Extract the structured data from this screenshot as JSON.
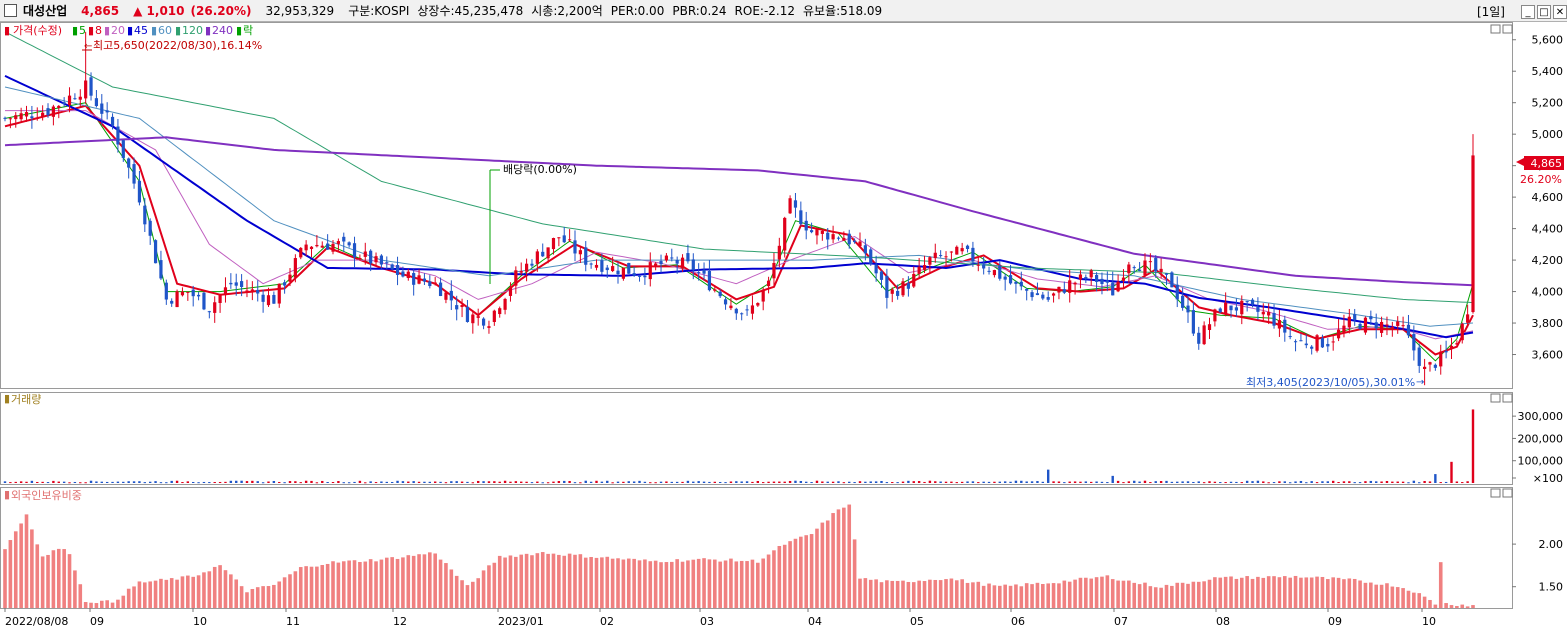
{
  "header": {
    "name": "대성산업",
    "price": "4,865",
    "change": "▲ 1,010",
    "change_pct": "(26.20%)",
    "volume": "32,953,329",
    "market": "구분:KOSPI",
    "shares": "상장수:45,235,478",
    "mcap": "시총:2,200억",
    "per": "PER:0.00",
    "pbr": "PBR:0.24",
    "roe": "ROE:-2.12",
    "reserve": "유보율:518.09",
    "timeframe": "[1일]"
  },
  "window_buttons": [
    "_",
    "□",
    "✕"
  ],
  "colors": {
    "up": "#e0001b",
    "down": "#1f55c8",
    "ma5": "#00a000",
    "ma8": "#e0001b",
    "ma20": "#c060c0",
    "ma45": "#0000d0",
    "ma60": "#5090c0",
    "ma120": "#30a070",
    "ma240": "#8030c0"
  },
  "legend": [
    {
      "label": "가격(수정)",
      "color": "#e0001b"
    },
    {
      "label": "5",
      "color": "#00a000"
    },
    {
      "label": "8",
      "color": "#e0001b"
    },
    {
      "label": "20",
      "color": "#c060c0"
    },
    {
      "label": "45",
      "color": "#0000d0"
    },
    {
      "label": "60",
      "color": "#5090c0"
    },
    {
      "label": "120",
      "color": "#30a070"
    },
    {
      "label": "240",
      "color": "#8030c0"
    },
    {
      "label": "락",
      "color": "#00a000"
    }
  ],
  "annotations": {
    "high": "최고5,650(2022/08/30),16.14%",
    "low": "최저3,405(2023/10/05),30.01%",
    "dividend": "배당락(0.00%)",
    "price_tag": "4,865",
    "price_tag_pct": "26.20%"
  },
  "panels": {
    "volume_title": "거래량",
    "foreign_title": "외국인보유비중"
  },
  "chart_data": [
    {
      "type": "candlestick",
      "title": "가격(수정)",
      "ylim": [
        3400,
        5700
      ],
      "yticks": [
        "5,600",
        "5,400",
        "5,200",
        "5,000",
        "4,800",
        "4,600",
        "4,400",
        "4,200",
        "4,000",
        "3,800",
        "3,600"
      ],
      "ytick_values": [
        5600,
        5400,
        5200,
        5000,
        4800,
        4600,
        4400,
        4200,
        4000,
        3800,
        3600
      ],
      "x_labels": [
        "2022/08/08",
        "09",
        "10",
        "11",
        "12",
        "2023/01",
        "02",
        "03",
        "04",
        "05",
        "06",
        "07",
        "08",
        "09",
        "10"
      ],
      "close_anchors": [
        [
          0,
          5100
        ],
        [
          8,
          5150
        ],
        [
          15,
          5300
        ],
        [
          20,
          5050
        ],
        [
          25,
          4600
        ],
        [
          30,
          3950
        ],
        [
          34,
          4000
        ],
        [
          38,
          3900
        ],
        [
          42,
          4050
        ],
        [
          46,
          4000
        ],
        [
          50,
          3950
        ],
        [
          56,
          4300
        ],
        [
          62,
          4300
        ],
        [
          68,
          4200
        ],
        [
          74,
          4100
        ],
        [
          80,
          4050
        ],
        [
          86,
          3850
        ],
        [
          90,
          3820
        ],
        [
          95,
          4100
        ],
        [
          98,
          4200
        ],
        [
          103,
          4350
        ],
        [
          108,
          4200
        ],
        [
          113,
          4150
        ],
        [
          118,
          4120
        ],
        [
          124,
          4200
        ],
        [
          128,
          4150
        ],
        [
          134,
          3950
        ],
        [
          138,
          3850
        ],
        [
          142,
          4050
        ],
        [
          146,
          4550
        ],
        [
          150,
          4380
        ],
        [
          156,
          4350
        ],
        [
          160,
          4250
        ],
        [
          164,
          3980
        ],
        [
          168,
          4050
        ],
        [
          172,
          4200
        ],
        [
          178,
          4250
        ],
        [
          183,
          4150
        ],
        [
          188,
          4030
        ],
        [
          194,
          3950
        ],
        [
          198,
          4050
        ],
        [
          202,
          4100
        ],
        [
          206,
          4000
        ],
        [
          209,
          4200
        ],
        [
          213,
          4150
        ],
        [
          217,
          4050
        ],
        [
          222,
          3700
        ],
        [
          226,
          3900
        ],
        [
          230,
          3900
        ],
        [
          235,
          3850
        ],
        [
          240,
          3680
        ],
        [
          246,
          3680
        ],
        [
          250,
          3800
        ],
        [
          255,
          3800
        ],
        [
          260,
          3760
        ],
        [
          264,
          3500
        ],
        [
          268,
          3600
        ],
        [
          270,
          3700
        ],
        [
          272,
          3855
        ],
        [
          273,
          4865
        ]
      ],
      "series": [
        {
          "name": "5",
          "anchors": [
            [
              0,
              5100
            ],
            [
              15,
              5200
            ],
            [
              25,
              4700
            ],
            [
              30,
              4000
            ],
            [
              40,
              4000
            ],
            [
              52,
              4050
            ],
            [
              60,
              4300
            ],
            [
              70,
              4150
            ],
            [
              80,
              4050
            ],
            [
              88,
              3850
            ],
            [
              96,
              4100
            ],
            [
              105,
              4320
            ],
            [
              115,
              4150
            ],
            [
              125,
              4170
            ],
            [
              136,
              3920
            ],
            [
              142,
              4050
            ],
            [
              147,
              4450
            ],
            [
              155,
              4370
            ],
            [
              164,
              4000
            ],
            [
              172,
              4150
            ],
            [
              180,
              4250
            ],
            [
              190,
              4020
            ],
            [
              198,
              4000
            ],
            [
              206,
              4030
            ],
            [
              212,
              4170
            ],
            [
              220,
              3880
            ],
            [
              226,
              3850
            ],
            [
              236,
              3830
            ],
            [
              244,
              3700
            ],
            [
              252,
              3780
            ],
            [
              260,
              3760
            ],
            [
              266,
              3560
            ],
            [
              270,
              3700
            ],
            [
              273,
              4050
            ]
          ]
        },
        {
          "name": "8",
          "anchors": [
            [
              0,
              5050
            ],
            [
              15,
              5180
            ],
            [
              25,
              4800
            ],
            [
              32,
              4050
            ],
            [
              40,
              3980
            ],
            [
              52,
              4020
            ],
            [
              60,
              4280
            ],
            [
              70,
              4150
            ],
            [
              80,
              4050
            ],
            [
              88,
              3850
            ],
            [
              96,
              4080
            ],
            [
              106,
              4300
            ],
            [
              116,
              4160
            ],
            [
              126,
              4160
            ],
            [
              136,
              3950
            ],
            [
              143,
              4030
            ],
            [
              148,
              4420
            ],
            [
              157,
              4360
            ],
            [
              166,
              4020
            ],
            [
              174,
              4150
            ],
            [
              182,
              4230
            ],
            [
              192,
              4020
            ],
            [
              200,
              4000
            ],
            [
              208,
              4020
            ],
            [
              214,
              4140
            ],
            [
              222,
              3900
            ],
            [
              228,
              3850
            ],
            [
              236,
              3800
            ],
            [
              244,
              3700
            ],
            [
              252,
              3760
            ],
            [
              260,
              3760
            ],
            [
              266,
              3600
            ],
            [
              270,
              3650
            ],
            [
              273,
              3850
            ]
          ]
        },
        {
          "name": "20",
          "anchors": [
            [
              0,
              5150
            ],
            [
              15,
              5150
            ],
            [
              28,
              4900
            ],
            [
              38,
              4300
            ],
            [
              48,
              4050
            ],
            [
              58,
              4200
            ],
            [
              68,
              4200
            ],
            [
              80,
              4100
            ],
            [
              88,
              3950
            ],
            [
              98,
              4050
            ],
            [
              110,
              4250
            ],
            [
              122,
              4180
            ],
            [
              136,
              4050
            ],
            [
              146,
              4200
            ],
            [
              158,
              4350
            ],
            [
              168,
              4120
            ],
            [
              180,
              4200
            ],
            [
              192,
              4080
            ],
            [
              204,
              4030
            ],
            [
              214,
              4100
            ],
            [
              224,
              3950
            ],
            [
              234,
              3880
            ],
            [
              246,
              3760
            ],
            [
              258,
              3780
            ],
            [
              266,
              3700
            ],
            [
              273,
              3750
            ]
          ]
        },
        {
          "name": "45",
          "anchors": [
            [
              0,
              5370
            ],
            [
              20,
              5050
            ],
            [
              45,
              4450
            ],
            [
              60,
              4150
            ],
            [
              80,
              4140
            ],
            [
              95,
              4110
            ],
            [
              115,
              4100
            ],
            [
              130,
              4140
            ],
            [
              150,
              4150
            ],
            [
              160,
              4180
            ],
            [
              175,
              4150
            ],
            [
              185,
              4200
            ],
            [
              200,
              4080
            ],
            [
              212,
              4050
            ],
            [
              222,
              3960
            ],
            [
              235,
              3900
            ],
            [
              252,
              3810
            ],
            [
              262,
              3750
            ],
            [
              268,
              3710
            ],
            [
              273,
              3740
            ]
          ]
        },
        {
          "name": "60",
          "anchors": [
            [
              0,
              5300
            ],
            [
              25,
              5100
            ],
            [
              50,
              4450
            ],
            [
              70,
              4200
            ],
            [
              90,
              4100
            ],
            [
              110,
              4200
            ],
            [
              130,
              4200
            ],
            [
              150,
              4200
            ],
            [
              170,
              4230
            ],
            [
              190,
              4140
            ],
            [
              210,
              4100
            ],
            [
              230,
              3950
            ],
            [
              250,
              3860
            ],
            [
              265,
              3780
            ],
            [
              273,
              3800
            ]
          ]
        },
        {
          "name": "120",
          "anchors": [
            [
              0,
              5650
            ],
            [
              20,
              5300
            ],
            [
              50,
              5100
            ],
            [
              70,
              4700
            ],
            [
              100,
              4430
            ],
            [
              130,
              4270
            ],
            [
              160,
              4220
            ],
            [
              190,
              4150
            ],
            [
              215,
              4120
            ],
            [
              240,
              4020
            ],
            [
              260,
              3950
            ],
            [
              273,
              3930
            ]
          ]
        },
        {
          "name": "240",
          "anchors": [
            [
              0,
              4930
            ],
            [
              30,
              4980
            ],
            [
              50,
              4900
            ],
            [
              80,
              4850
            ],
            [
              110,
              4800
            ],
            [
              140,
              4770
            ],
            [
              160,
              4700
            ],
            [
              180,
              4510
            ],
            [
              210,
              4240
            ],
            [
              240,
              4100
            ],
            [
              260,
              4060
            ],
            [
              273,
              4040
            ]
          ]
        }
      ]
    },
    {
      "type": "bar",
      "title": "거래량",
      "yticks": [
        "300,000",
        "200,000",
        "100,000",
        "×100"
      ],
      "ytick_values": [
        300000,
        200000,
        100000,
        0
      ],
      "ylim": [
        0,
        350000
      ],
      "spikes": [
        [
          194,
          60000
        ],
        [
          206,
          32000
        ],
        [
          266,
          40000
        ],
        [
          269,
          95000
        ],
        [
          273,
          330000
        ]
      ],
      "baseline": 8000
    },
    {
      "type": "bar",
      "title": "외국인보유비중",
      "yticks": [
        "2.00",
        "1.50"
      ],
      "ytick_values": [
        2.0,
        1.5
      ],
      "ylim": [
        1.25,
        2.6
      ],
      "anchors": [
        [
          0,
          1.95
        ],
        [
          4,
          2.35
        ],
        [
          7,
          1.85
        ],
        [
          10,
          1.95
        ],
        [
          12,
          1.9
        ],
        [
          15,
          1.33
        ],
        [
          20,
          1.32
        ],
        [
          25,
          1.55
        ],
        [
          30,
          1.58
        ],
        [
          35,
          1.62
        ],
        [
          40,
          1.75
        ],
        [
          45,
          1.45
        ],
        [
          50,
          1.52
        ],
        [
          55,
          1.72
        ],
        [
          60,
          1.78
        ],
        [
          70,
          1.82
        ],
        [
          80,
          1.9
        ],
        [
          86,
          1.5
        ],
        [
          92,
          1.85
        ],
        [
          100,
          1.9
        ],
        [
          110,
          1.85
        ],
        [
          120,
          1.8
        ],
        [
          130,
          1.82
        ],
        [
          140,
          1.8
        ],
        [
          145,
          2.0
        ],
        [
          150,
          2.12
        ],
        [
          154,
          2.35
        ],
        [
          157,
          2.48
        ],
        [
          159,
          1.6
        ],
        [
          165,
          1.55
        ],
        [
          175,
          1.6
        ],
        [
          185,
          1.5
        ],
        [
          195,
          1.55
        ],
        [
          205,
          1.62
        ],
        [
          210,
          1.55
        ],
        [
          215,
          1.5
        ],
        [
          225,
          1.6
        ],
        [
          240,
          1.62
        ],
        [
          250,
          1.58
        ],
        [
          258,
          1.52
        ],
        [
          262,
          1.45
        ],
        [
          266,
          1.3
        ],
        [
          267,
          1.8
        ],
        [
          268,
          1.3
        ],
        [
          273,
          1.28
        ]
      ]
    }
  ]
}
